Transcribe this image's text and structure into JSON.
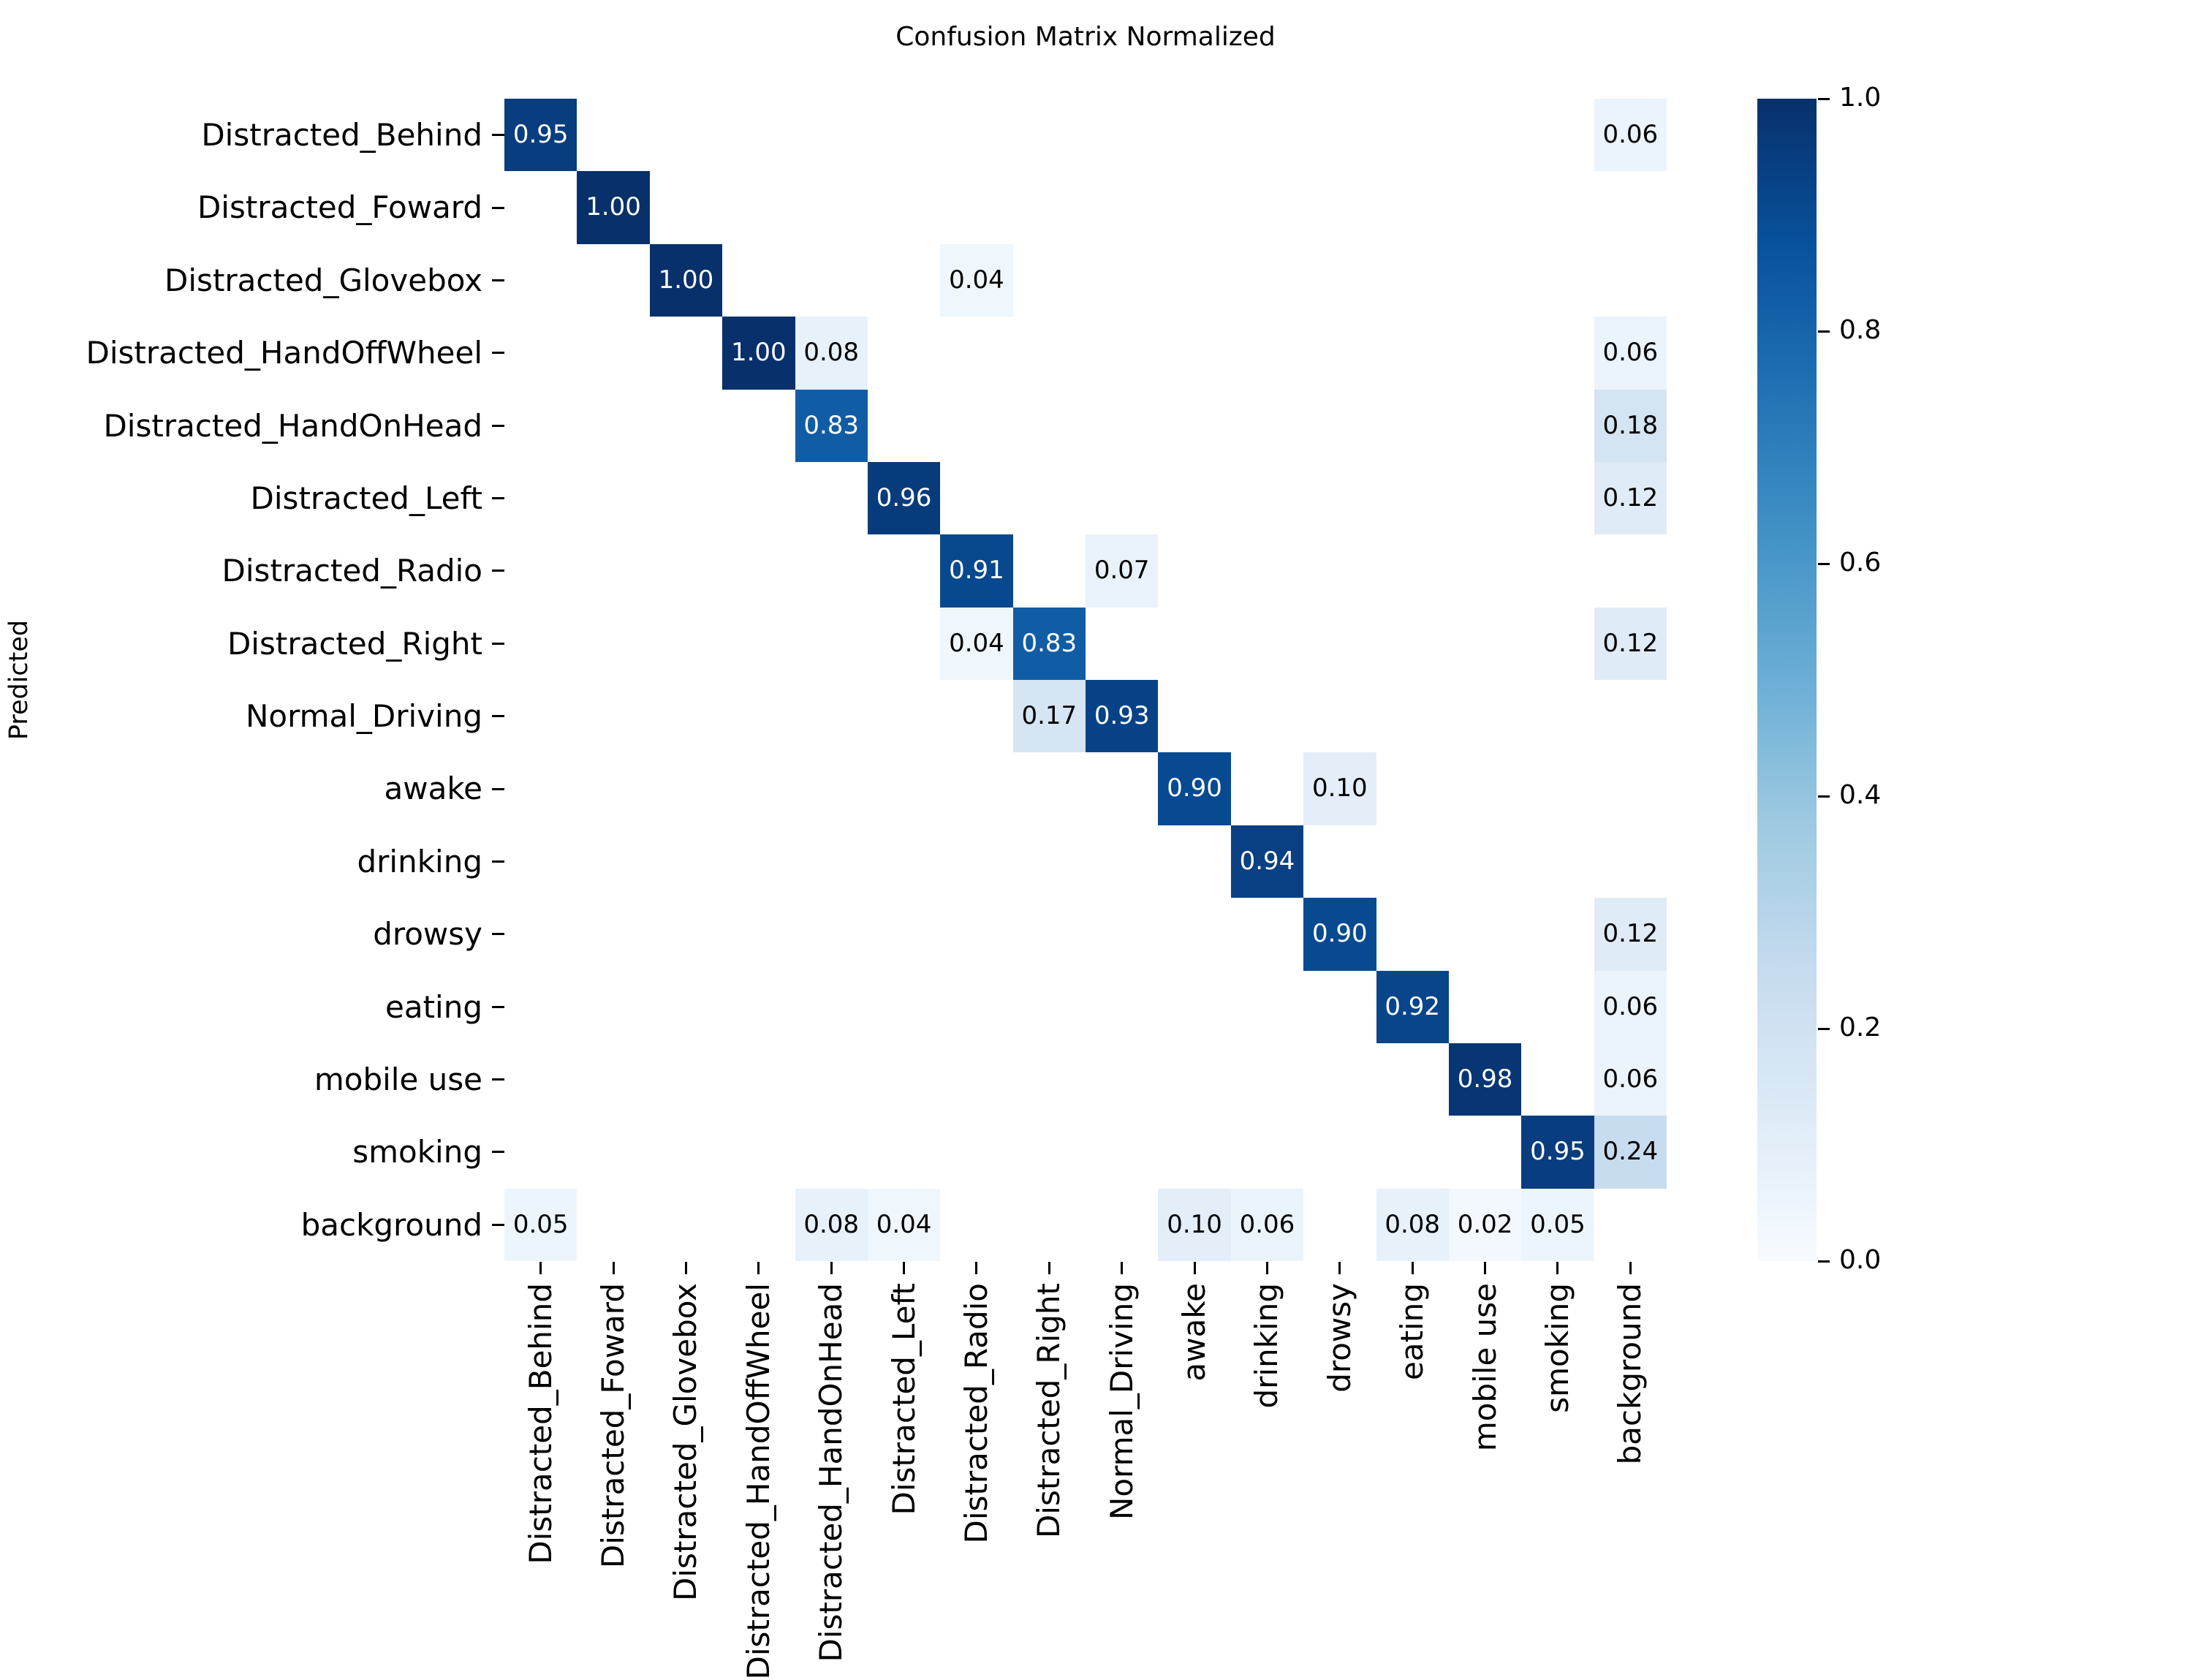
{
  "chart_data": {
    "type": "heatmap",
    "title": "Confusion Matrix Normalized",
    "ylabel": "Predicted",
    "xlabel": "",
    "categories": [
      "Distracted_Behind",
      "Distracted_Foward",
      "Distracted_Glovebox",
      "Distracted_HandOffWheel",
      "Distracted_HandOnHead",
      "Distracted_Left",
      "Distracted_Radio",
      "Distracted_Right",
      "Normal_Driving",
      "awake",
      "drinking",
      "drowsy",
      "eating",
      "mobile use",
      "smoking",
      "background"
    ],
    "matrix": [
      [
        0.95,
        0,
        0,
        0,
        0,
        0,
        0,
        0,
        0,
        0,
        0,
        0,
        0,
        0,
        0,
        0.06
      ],
      [
        0,
        1.0,
        0,
        0,
        0,
        0,
        0,
        0,
        0,
        0,
        0,
        0,
        0,
        0,
        0,
        0
      ],
      [
        0,
        0,
        1.0,
        0,
        0,
        0,
        0.04,
        0,
        0,
        0,
        0,
        0,
        0,
        0,
        0,
        0
      ],
      [
        0,
        0,
        0,
        1.0,
        0.08,
        0,
        0,
        0,
        0,
        0,
        0,
        0,
        0,
        0,
        0,
        0.06
      ],
      [
        0,
        0,
        0,
        0,
        0.83,
        0,
        0,
        0,
        0,
        0,
        0,
        0,
        0,
        0,
        0,
        0.18
      ],
      [
        0,
        0,
        0,
        0,
        0,
        0.96,
        0,
        0,
        0,
        0,
        0,
        0,
        0,
        0,
        0,
        0.12
      ],
      [
        0,
        0,
        0,
        0,
        0,
        0,
        0.91,
        0,
        0.07,
        0,
        0,
        0,
        0,
        0,
        0,
        0
      ],
      [
        0,
        0,
        0,
        0,
        0,
        0,
        0.04,
        0.83,
        0,
        0,
        0,
        0,
        0,
        0,
        0,
        0.12
      ],
      [
        0,
        0,
        0,
        0,
        0,
        0,
        0,
        0.17,
        0.93,
        0,
        0,
        0,
        0,
        0,
        0,
        0
      ],
      [
        0,
        0,
        0,
        0,
        0,
        0,
        0,
        0,
        0,
        0.9,
        0,
        0.1,
        0,
        0,
        0,
        0
      ],
      [
        0,
        0,
        0,
        0,
        0,
        0,
        0,
        0,
        0,
        0,
        0.94,
        0,
        0,
        0,
        0,
        0
      ],
      [
        0,
        0,
        0,
        0,
        0,
        0,
        0,
        0,
        0,
        0,
        0,
        0.9,
        0,
        0,
        0,
        0.12
      ],
      [
        0,
        0,
        0,
        0,
        0,
        0,
        0,
        0,
        0,
        0,
        0,
        0,
        0.92,
        0,
        0,
        0.06
      ],
      [
        0,
        0,
        0,
        0,
        0,
        0,
        0,
        0,
        0,
        0,
        0,
        0,
        0,
        0.98,
        0,
        0.06
      ],
      [
        0,
        0,
        0,
        0,
        0,
        0,
        0,
        0,
        0,
        0,
        0,
        0,
        0,
        0,
        0.95,
        0.24
      ],
      [
        0.05,
        0,
        0,
        0,
        0.08,
        0.04,
        0,
        0,
        0,
        0.1,
        0.06,
        0,
        0.08,
        0.02,
        0.05,
        0
      ]
    ],
    "value_format": "0.00",
    "zero_cells_blank": true,
    "colormap": "Blues",
    "colormap_stops": [
      "#f7fbff",
      "#deebf7",
      "#c6dbef",
      "#9ecae1",
      "#6baed6",
      "#4292c6",
      "#2171b5",
      "#08519c",
      "#08306b"
    ],
    "annotation_color_dark_cells": "#ffffff",
    "annotation_color_light_cells": "#000000",
    "grid": false,
    "colorbar": {
      "position": "right",
      "range": [
        0.0,
        1.0
      ],
      "tick_labels": [
        "1.0",
        "0.8",
        "0.6",
        "0.4",
        "0.2",
        "0.0"
      ],
      "tick_values": [
        1.0,
        0.8,
        0.6,
        0.4,
        0.2,
        0.0
      ]
    }
  }
}
